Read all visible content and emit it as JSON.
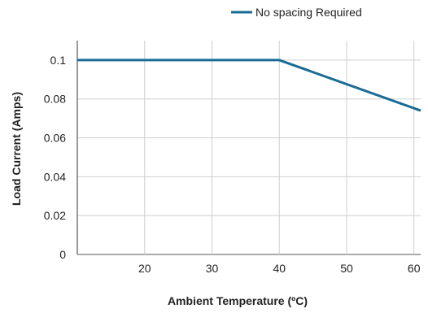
{
  "chart_data": {
    "type": "line",
    "title": "",
    "xlabel": "Ambient Temperature (ºC)",
    "ylabel": "Load Current (Amps)",
    "xlim": [
      10,
      61
    ],
    "ylim": [
      0,
      0.11
    ],
    "x_ticks": [
      {
        "value": 20,
        "label": "20"
      },
      {
        "value": 30,
        "label": "30"
      },
      {
        "value": 40,
        "label": "40"
      },
      {
        "value": 50,
        "label": "50"
      },
      {
        "value": 60,
        "label": "60"
      }
    ],
    "y_ticks": [
      {
        "value": 0,
        "label": "0"
      },
      {
        "value": 0.02,
        "label": "0.02"
      },
      {
        "value": 0.04,
        "label": "0.04"
      },
      {
        "value": 0.06,
        "label": "0.06"
      },
      {
        "value": 0.08,
        "label": "0.08"
      },
      {
        "value": 0.1,
        "label": "0.1"
      }
    ],
    "grid": true,
    "legend_position": "top-right",
    "series": [
      {
        "name": "No spacing Required",
        "color": "#1a6b96",
        "x": [
          10,
          40,
          61
        ],
        "y": [
          0.1,
          0.1,
          0.074
        ]
      }
    ]
  }
}
